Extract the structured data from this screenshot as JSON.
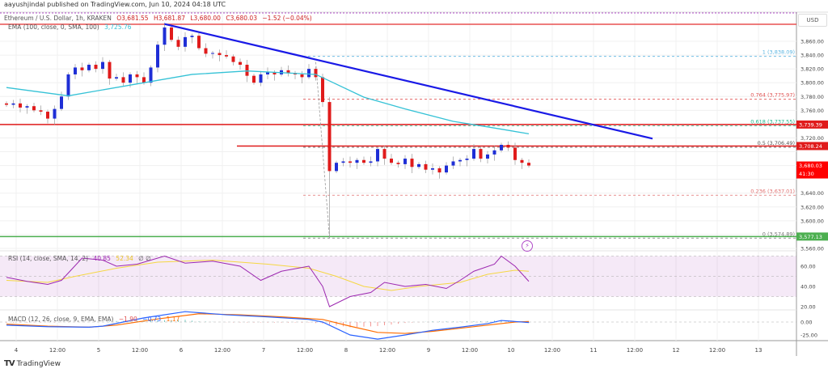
{
  "header": {
    "published": "aayushjindal published on TradingView.com, Jun 10, 2024 04:18 UTC"
  },
  "legend": {
    "symbol": "Ethereum / U.S. Dollar, 1h, KRAKEN",
    "open": "O3,681.55",
    "high": "H3,681.87",
    "low": "L3,680.00",
    "close": "C3,680.03",
    "change": "−1.52 (−0.04%)",
    "ema_label": "EMA (100, close, 0, SMA, 100)",
    "ema_value": "3,725.76"
  },
  "rsi_legend": {
    "label": "RSI (14, close, SMA, 14, 2)",
    "rsi": "40.85",
    "sma": "52.34",
    "extra": "∅ ∅"
  },
  "macd_legend": {
    "label": "MACD (12, 26, close, 9, EMA, EMA)",
    "hist": "−1.90",
    "macd": "−0.73",
    "signal": "1.17"
  },
  "currency": "USD",
  "footer": {
    "brand": "TradingView"
  },
  "colors": {
    "up": "#1f2fd6",
    "down": "#e01b1b",
    "ema": "#35c2d6",
    "trend": "#1a1ae6",
    "rsi": "#9c27b0",
    "rsi_sma": "#f5d742",
    "macd": "#2962ff",
    "signal": "#ff6d00"
  },
  "chart_data": {
    "type": "candlestick",
    "price_axis": {
      "min": 3560,
      "max": 3860,
      "step": 20
    },
    "x_ticks": [
      "4",
      "12:00",
      "5",
      "12:00",
      "6",
      "12:00",
      "7",
      "12:00",
      "8",
      "12:00",
      "9",
      "12:00",
      "10",
      "12:00",
      "11",
      "12:00",
      "12",
      "12:00",
      "13"
    ],
    "closes": [
      3768,
      3770,
      3764,
      3766,
      3760,
      3758,
      3748,
      3762,
      3780,
      3812,
      3822,
      3818,
      3826,
      3820,
      3830,
      3806,
      3808,
      3800,
      3812,
      3808,
      3800,
      3822,
      3855,
      3880,
      3862,
      3852,
      3866,
      3868,
      3850,
      3842,
      3843,
      3840,
      3838,
      3830,
      3826,
      3810,
      3800,
      3812,
      3815,
      3812,
      3818,
      3814,
      3812,
      3808,
      3820,
      3808,
      3772,
      3672,
      3684,
      3686,
      3684,
      3688,
      3684,
      3686,
      3704,
      3690,
      3684,
      3682,
      3690,
      3678,
      3682,
      3674,
      3676,
      3670,
      3680,
      3686,
      3688,
      3690,
      3704,
      3690,
      3696,
      3702,
      3710,
      3706,
      3688,
      3684,
      3680
    ],
    "spike_low": {
      "index": 47,
      "price": 3574.89
    },
    "ema": [
      [
        0,
        3793
      ],
      [
        9,
        3781
      ],
      [
        27,
        3812
      ],
      [
        35,
        3817
      ],
      [
        45,
        3812
      ],
      [
        52,
        3779
      ],
      [
        58,
        3762
      ],
      [
        65,
        3744
      ],
      [
        70,
        3736
      ],
      [
        76,
        3726
      ]
    ],
    "trendline": [
      [
        23,
        3885
      ],
      [
        94,
        3719
      ]
    ],
    "horizontal_levels": [
      {
        "price": 3739.39,
        "label": "3,739.39",
        "color": "#e01b1b"
      },
      {
        "price": 3708.24,
        "label": "3,708.24",
        "color": "#e01b1b"
      },
      {
        "price": 3577.13,
        "label": "3,577.13",
        "color": "#4caf50"
      }
    ],
    "current_price": {
      "label": "3,680.03",
      "countdown": "41:30",
      "price": 3680.03
    },
    "fib_levels": [
      {
        "ratio": "1",
        "price": 3838.09,
        "label": "1 (3,838.09)",
        "color": "#5bb4e0"
      },
      {
        "ratio": "0.764",
        "price": 3775.97,
        "label": "0.764 (3,775.97)",
        "color": "#e05050"
      },
      {
        "ratio": "0.618",
        "price": 3737.55,
        "label": "0.618 (3,737.55)",
        "color": "#22b58a"
      },
      {
        "ratio": "0.5",
        "price": 3706.49,
        "label": "0.5 (3,706.49)",
        "color": "#555555"
      },
      {
        "ratio": "0.236",
        "price": 3637.01,
        "label": "0.236 (3,637.01)",
        "color": "#e07070"
      },
      {
        "ratio": "0",
        "price": 3574.89,
        "label": "0 (3,574.89)",
        "color": "#777777"
      }
    ],
    "rsi": {
      "ticks": [
        60,
        40,
        20
      ],
      "band": [
        30,
        70
      ],
      "values": [
        [
          0,
          49
        ],
        [
          3,
          45
        ],
        [
          6,
          42
        ],
        [
          8,
          46
        ],
        [
          11,
          68
        ],
        [
          14,
          66
        ],
        [
          16,
          60
        ],
        [
          19,
          62
        ],
        [
          23,
          70
        ],
        [
          26,
          63
        ],
        [
          30,
          65
        ],
        [
          34,
          60
        ],
        [
          37,
          46
        ],
        [
          40,
          55
        ],
        [
          44,
          60
        ],
        [
          46,
          40
        ],
        [
          47,
          20
        ],
        [
          50,
          30
        ],
        [
          53,
          34
        ],
        [
          55,
          44
        ],
        [
          58,
          40
        ],
        [
          61,
          42
        ],
        [
          64,
          38
        ],
        [
          66,
          46
        ],
        [
          68,
          55
        ],
        [
          71,
          62
        ],
        [
          72,
          70
        ],
        [
          74,
          60
        ],
        [
          76,
          45
        ]
      ],
      "sma": [
        [
          0,
          46
        ],
        [
          6,
          44
        ],
        [
          10,
          50
        ],
        [
          16,
          58
        ],
        [
          22,
          64
        ],
        [
          30,
          66
        ],
        [
          38,
          62
        ],
        [
          44,
          58
        ],
        [
          48,
          50
        ],
        [
          52,
          40
        ],
        [
          56,
          36
        ],
        [
          60,
          40
        ],
        [
          66,
          44
        ],
        [
          70,
          52
        ],
        [
          74,
          56
        ],
        [
          76,
          55
        ]
      ]
    },
    "macd": {
      "ticks": [
        0,
        -25
      ],
      "macd": [
        [
          0,
          -6
        ],
        [
          6,
          -9
        ],
        [
          12,
          -10
        ],
        [
          14,
          -8
        ],
        [
          20,
          8
        ],
        [
          26,
          20
        ],
        [
          32,
          14
        ],
        [
          38,
          10
        ],
        [
          44,
          5
        ],
        [
          46,
          0
        ],
        [
          50,
          -25
        ],
        [
          54,
          -33
        ],
        [
          58,
          -25
        ],
        [
          62,
          -16
        ],
        [
          66,
          -10
        ],
        [
          70,
          -3
        ],
        [
          72,
          3
        ],
        [
          76,
          -1
        ]
      ],
      "signal": [
        [
          0,
          -4
        ],
        [
          6,
          -8
        ],
        [
          12,
          -10
        ],
        [
          16,
          -6
        ],
        [
          22,
          6
        ],
        [
          28,
          16
        ],
        [
          34,
          14
        ],
        [
          40,
          10
        ],
        [
          46,
          5
        ],
        [
          50,
          -8
        ],
        [
          54,
          -20
        ],
        [
          58,
          -22
        ],
        [
          62,
          -18
        ],
        [
          66,
          -12
        ],
        [
          70,
          -6
        ],
        [
          74,
          0
        ],
        [
          76,
          1
        ]
      ]
    }
  }
}
